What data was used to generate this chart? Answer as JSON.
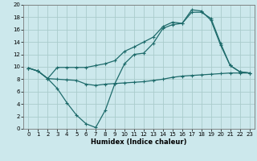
{
  "xlabel": "Humidex (Indice chaleur)",
  "background_color": "#cce8ec",
  "line_color": "#1e6b6b",
  "grid_color": "#aacccc",
  "xlim": [
    -0.5,
    23.5
  ],
  "ylim": [
    0,
    20
  ],
  "xticks": [
    0,
    1,
    2,
    3,
    4,
    5,
    6,
    7,
    8,
    9,
    10,
    11,
    12,
    13,
    14,
    15,
    16,
    17,
    18,
    19,
    20,
    21,
    22,
    23
  ],
  "yticks": [
    0,
    2,
    4,
    6,
    8,
    10,
    12,
    14,
    16,
    18,
    20
  ],
  "series_dip_x": [
    0,
    1,
    2,
    3,
    4,
    5,
    6,
    7,
    8,
    9,
    10,
    11,
    12,
    13,
    14,
    15,
    16,
    17,
    18,
    19,
    20,
    21,
    22,
    23
  ],
  "series_dip_y": [
    9.8,
    9.3,
    8.1,
    6.5,
    4.2,
    2.2,
    0.8,
    0.2,
    3.0,
    7.3,
    10.5,
    12.0,
    12.2,
    13.8,
    16.2,
    16.8,
    17.0,
    19.2,
    19.0,
    17.5,
    13.5,
    10.2,
    9.2,
    9.0
  ],
  "series_flat_x": [
    0,
    1,
    2,
    3,
    4,
    5,
    6,
    7,
    8,
    9,
    10,
    11,
    12,
    13,
    14,
    15,
    16,
    17,
    18,
    19,
    20,
    21,
    22,
    23
  ],
  "series_flat_y": [
    9.8,
    9.3,
    8.1,
    8.0,
    7.9,
    7.8,
    7.2,
    7.0,
    7.2,
    7.3,
    7.4,
    7.5,
    7.6,
    7.8,
    8.0,
    8.3,
    8.5,
    8.6,
    8.7,
    8.8,
    8.9,
    9.0,
    9.0,
    9.0
  ],
  "series_top_x": [
    0,
    1,
    2,
    3,
    4,
    5,
    6,
    7,
    8,
    9,
    10,
    11,
    12,
    13,
    14,
    15,
    16,
    17,
    18,
    19,
    20,
    21,
    22,
    23
  ],
  "series_top_y": [
    9.8,
    9.3,
    8.1,
    9.9,
    9.9,
    9.9,
    9.9,
    10.2,
    10.5,
    11.0,
    12.5,
    13.2,
    14.0,
    14.8,
    16.5,
    17.2,
    17.0,
    18.8,
    18.8,
    17.8,
    13.8,
    10.2,
    9.2,
    9.0
  ]
}
